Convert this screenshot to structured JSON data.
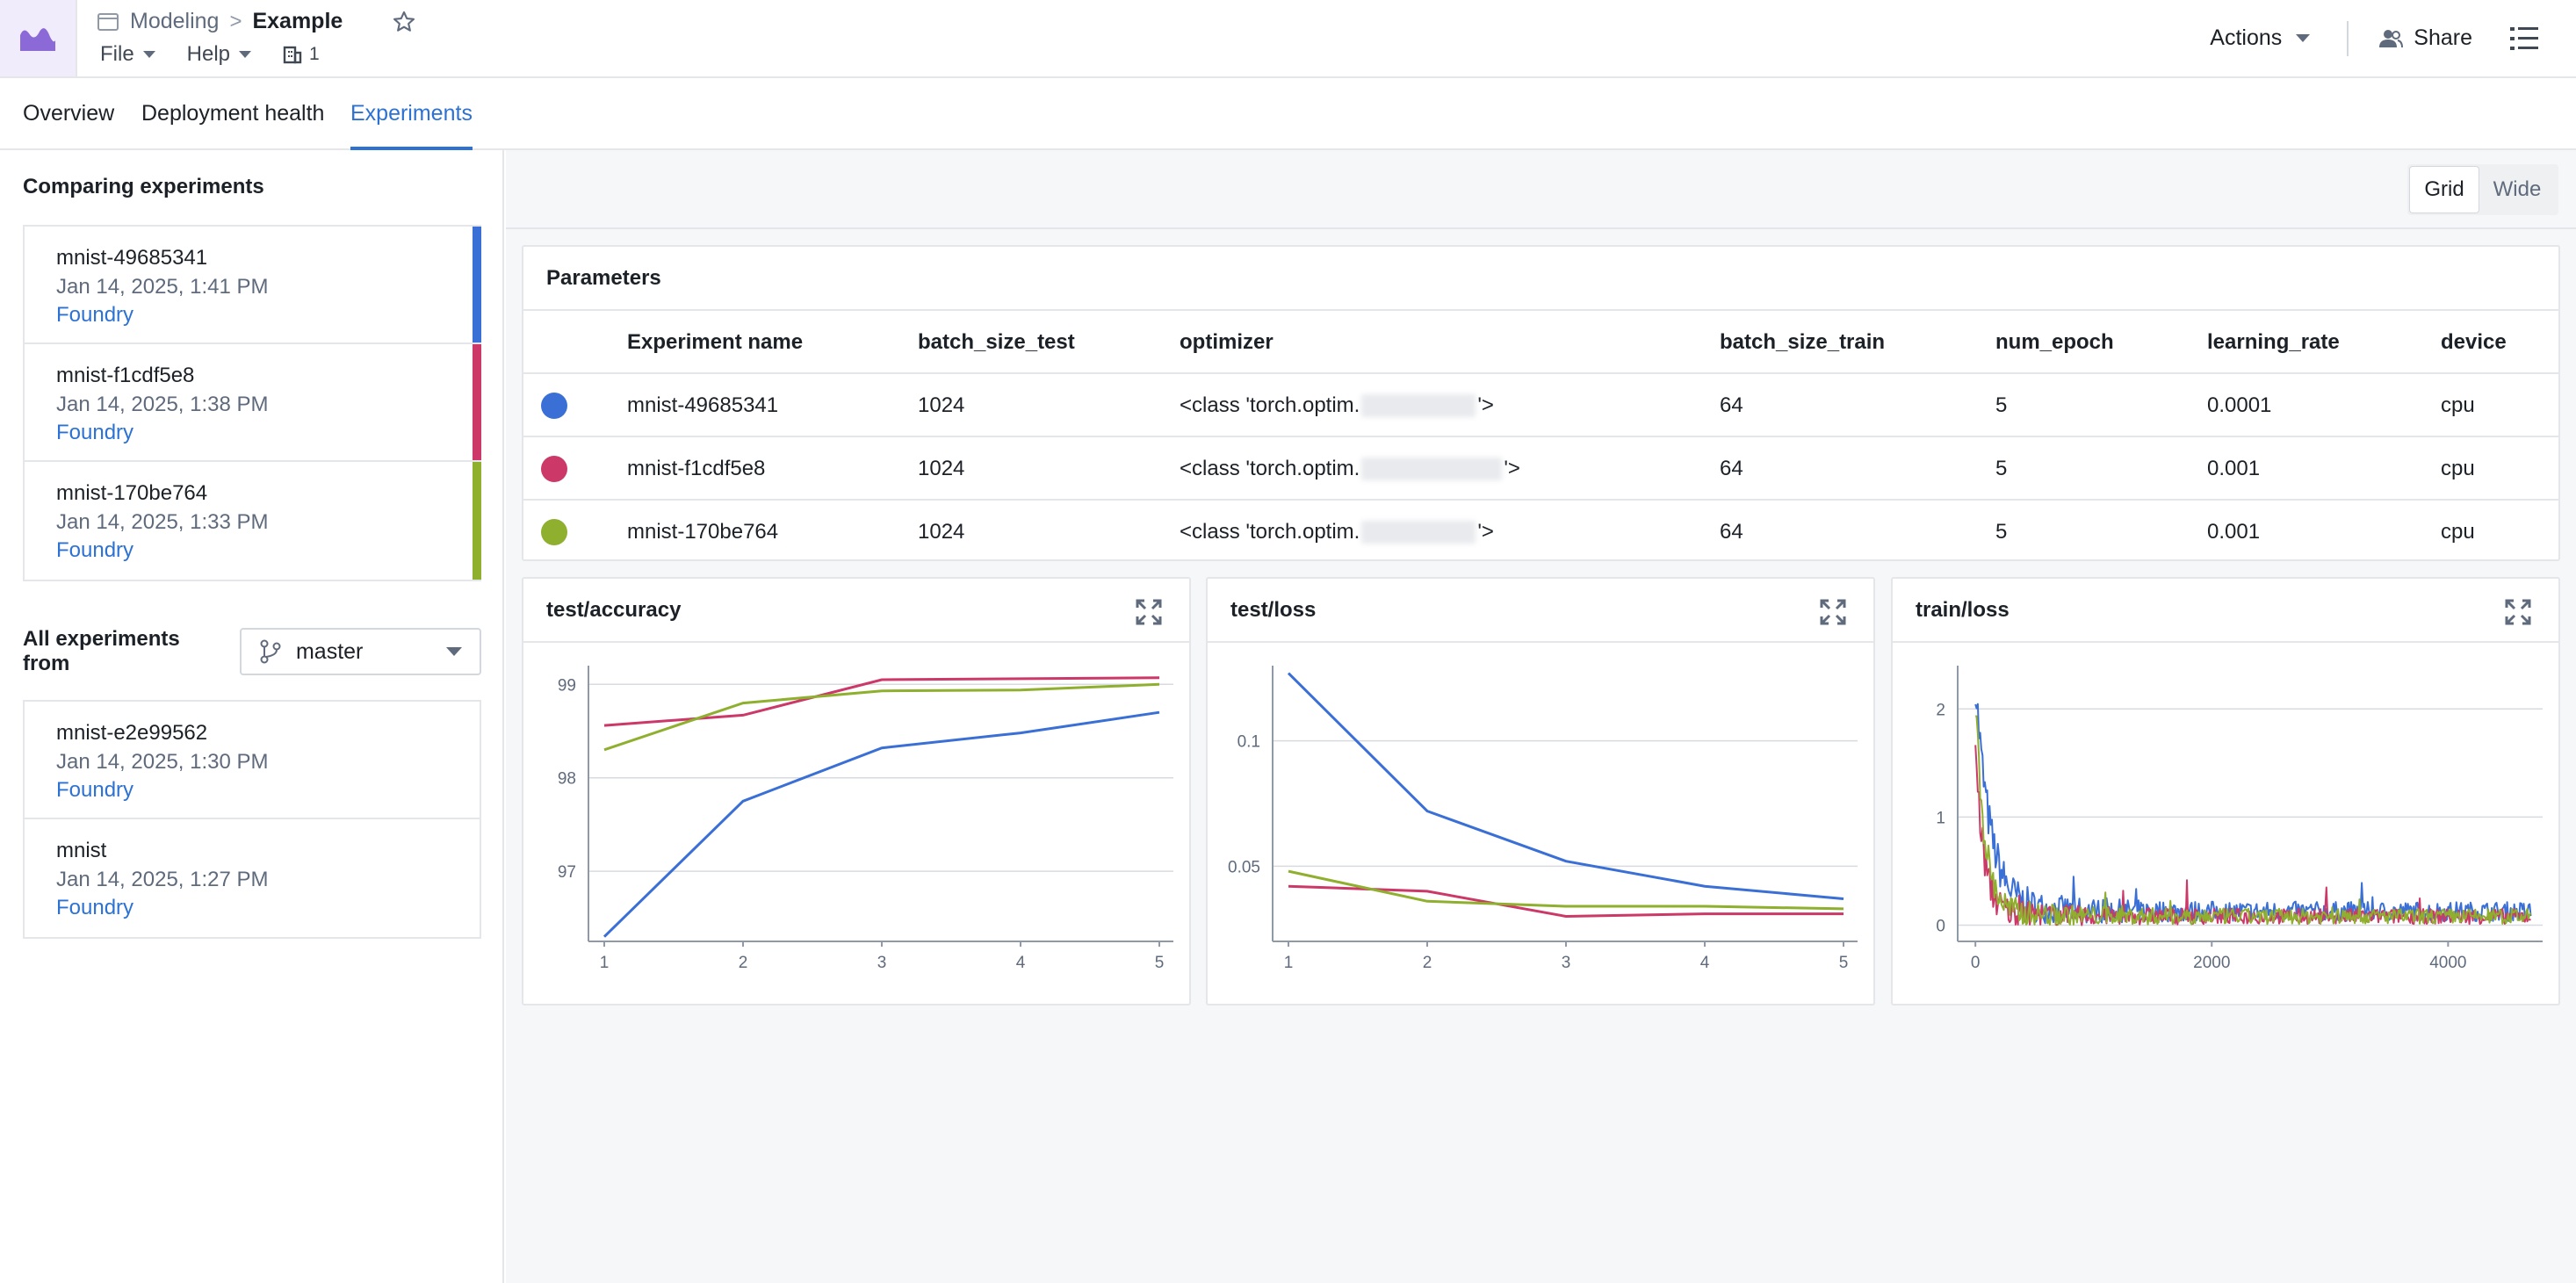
{
  "header": {
    "breadcrumb_module": "Modeling",
    "breadcrumb_separator": ">",
    "title": "Example",
    "menu_file": "File",
    "menu_help": "Help",
    "org_count": "1",
    "actions_label": "Actions",
    "share_label": "Share"
  },
  "tabs": [
    {
      "label": "Overview"
    },
    {
      "label": "Deployment health"
    },
    {
      "label": "Experiments"
    }
  ],
  "sidebar": {
    "comparing_heading": "Comparing experiments",
    "comparing": [
      {
        "name": "mnist-49685341",
        "date": "Jan 14, 2025, 1:41 PM",
        "source": "Foundry",
        "color": "#3a6fd6"
      },
      {
        "name": "mnist-f1cdf5e8",
        "date": "Jan 14, 2025, 1:38 PM",
        "source": "Foundry",
        "color": "#cc3868"
      },
      {
        "name": "mnist-170be764",
        "date": "Jan 14, 2025, 1:33 PM",
        "source": "Foundry",
        "color": "#8faf2e"
      }
    ],
    "all_from_label": "All experiments from",
    "branch": "master",
    "others": [
      {
        "name": "mnist-e2e99562",
        "date": "Jan 14, 2025, 1:30 PM",
        "source": "Foundry"
      },
      {
        "name": "mnist",
        "date": "Jan 14, 2025, 1:27 PM",
        "source": "Foundry"
      }
    ]
  },
  "view_toggle": {
    "grid": "Grid",
    "wide": "Wide",
    "selected": "Grid"
  },
  "parameters": {
    "title": "Parameters",
    "columns": [
      "Experiment name",
      "batch_size_test",
      "optimizer",
      "batch_size_train",
      "num_epoch",
      "learning_rate",
      "device"
    ],
    "rows": [
      {
        "color": "#3a6fd6",
        "name": "mnist-49685341",
        "batch_size_test": "1024",
        "optimizer_prefix": "<class 'torch.optim.",
        "optimizer_suffix": "'>",
        "batch_size_train": "64",
        "num_epoch": "5",
        "learning_rate": "0.0001",
        "device": "cpu"
      },
      {
        "color": "#cc3868",
        "name": "mnist-f1cdf5e8",
        "batch_size_test": "1024",
        "optimizer_prefix": "<class 'torch.optim.",
        "optimizer_suffix": "'>",
        "batch_size_train": "64",
        "num_epoch": "5",
        "learning_rate": "0.001",
        "device": "cpu"
      },
      {
        "color": "#8faf2e",
        "name": "mnist-170be764",
        "batch_size_test": "1024",
        "optimizer_prefix": "<class 'torch.optim.",
        "optimizer_suffix": "'>",
        "batch_size_train": "64",
        "num_epoch": "5",
        "learning_rate": "0.001",
        "device": "cpu"
      }
    ]
  },
  "chart_data": [
    {
      "type": "line",
      "title": "test/accuracy",
      "x": [
        1,
        2,
        3,
        4,
        5
      ],
      "xticks": [
        "1",
        "2",
        "3",
        "4",
        "5"
      ],
      "yticks": [
        "97",
        "98",
        "99"
      ],
      "ylim": [
        96.25,
        99.2
      ],
      "grid": true,
      "series": [
        {
          "color": "#3a6fd6",
          "values": [
            96.3,
            97.75,
            98.32,
            98.48,
            98.7
          ]
        },
        {
          "color": "#cc3868",
          "values": [
            98.56,
            98.67,
            99.05,
            99.06,
            99.07
          ]
        },
        {
          "color": "#8faf2e",
          "values": [
            98.3,
            98.8,
            98.93,
            98.94,
            99.0
          ]
        }
      ]
    },
    {
      "type": "line",
      "title": "test/loss",
      "x": [
        1,
        2,
        3,
        4,
        5
      ],
      "xticks": [
        "1",
        "2",
        "3",
        "4",
        "5"
      ],
      "yticks": [
        "0.05",
        "0.1"
      ],
      "ylim": [
        0.02,
        0.13
      ],
      "grid": true,
      "series": [
        {
          "color": "#3a6fd6",
          "values": [
            0.127,
            0.072,
            0.052,
            0.042,
            0.037
          ]
        },
        {
          "color": "#cc3868",
          "values": [
            0.042,
            0.04,
            0.03,
            0.031,
            0.031
          ]
        },
        {
          "color": "#8faf2e",
          "values": [
            0.048,
            0.036,
            0.034,
            0.034,
            0.033
          ]
        }
      ]
    },
    {
      "type": "line",
      "title": "train/loss",
      "xticks": [
        "0",
        "2000",
        "4000"
      ],
      "xlim": [
        -150,
        4800
      ],
      "yticks": [
        "0",
        "1",
        "2"
      ],
      "ylim": [
        -0.15,
        2.4
      ],
      "grid": true,
      "series": [
        {
          "color": "#3a6fd6",
          "start": 2.2,
          "floor": 0.1,
          "noise": 0.18,
          "decay": 120
        },
        {
          "color": "#cc3868",
          "start": 1.6,
          "floor": 0.06,
          "noise": 0.14,
          "decay": 70
        },
        {
          "color": "#8faf2e",
          "start": 2.0,
          "floor": 0.06,
          "noise": 0.14,
          "decay": 80
        }
      ],
      "x_end": 4700
    }
  ]
}
